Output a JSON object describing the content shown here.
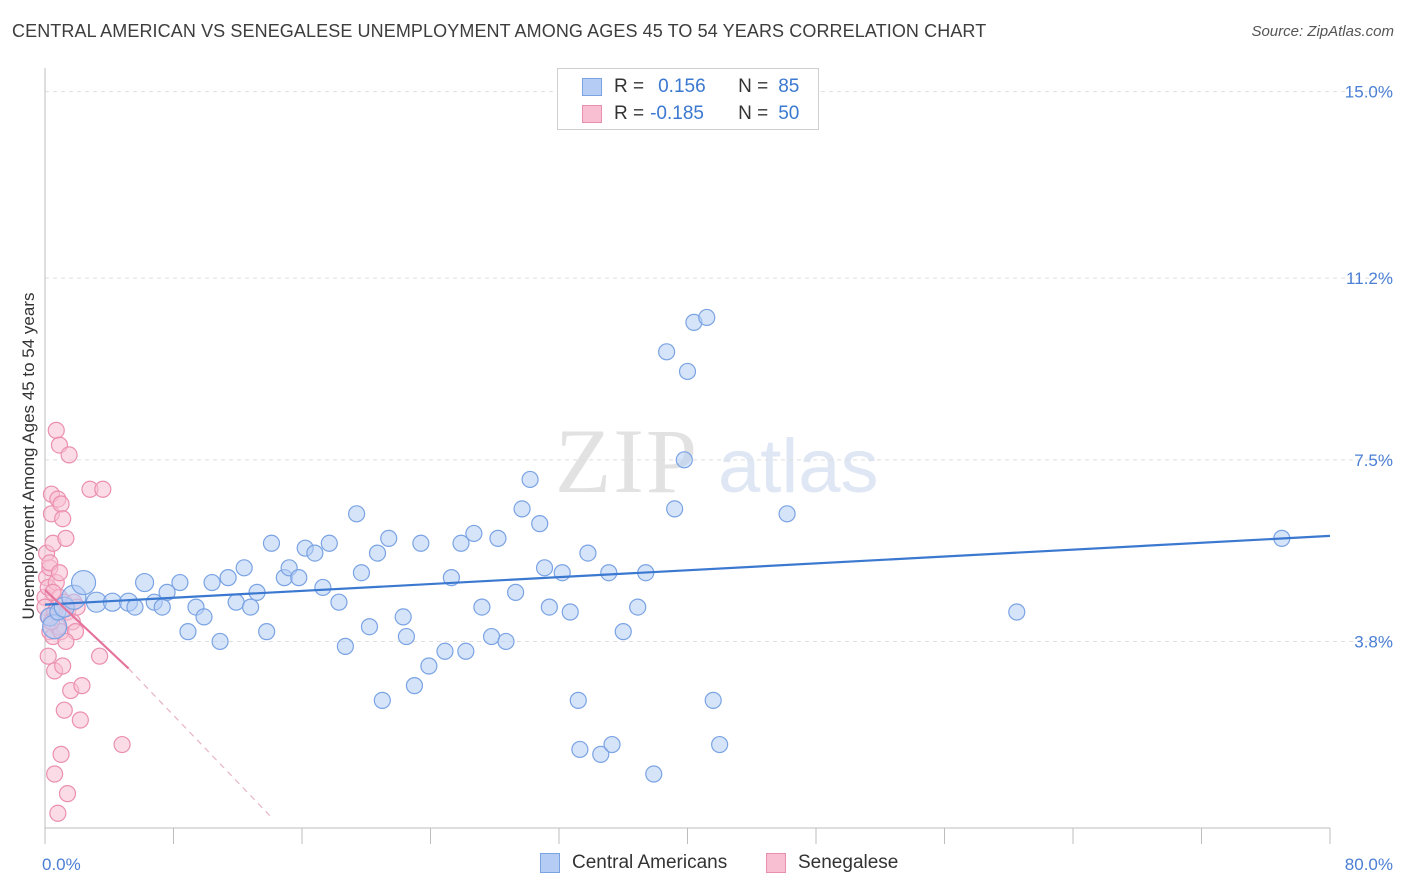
{
  "title": "CENTRAL AMERICAN VS SENEGALESE UNEMPLOYMENT AMONG AGES 45 TO 54 YEARS CORRELATION CHART",
  "source": "Source: ZipAtlas.com",
  "watermark": {
    "zip": "ZIP",
    "atlas": "atlas"
  },
  "legend": {
    "r_label": "R =",
    "n_label": "N =",
    "rows": [
      {
        "r": "0.156",
        "n": "85",
        "fill": "#b5cdf5",
        "stroke": "#7aa3e3"
      },
      {
        "r": "-0.185",
        "n": "50",
        "fill": "#f8bfd2",
        "stroke": "#eb8fb0"
      }
    ]
  },
  "bottom_legend": [
    "Central Americans",
    "Senegalese"
  ],
  "chart_data": {
    "type": "scatter",
    "title": "CENTRAL AMERICAN VS SENEGALESE UNEMPLOYMENT AMONG AGES 45 TO 54 YEARS CORRELATION CHART",
    "xlabel": "",
    "ylabel": "Unemployment Among Ages 45 to 54 years",
    "xlim": [
      0,
      80
    ],
    "ylim": [
      0,
      15.4
    ],
    "x_tick_labels": [
      "0.0%",
      "80.0%"
    ],
    "y_ticks": [
      3.8,
      7.5,
      11.2,
      15.0
    ],
    "y_tick_labels": [
      "3.8%",
      "7.5%",
      "11.2%",
      "15.0%"
    ],
    "grid": true,
    "series": [
      {
        "name": "Central Americans",
        "color": "#7aa3e3",
        "fill": "#b5cdf5",
        "trend": {
          "x": [
            0,
            80
          ],
          "y": [
            4.55,
            5.95
          ],
          "color": "#3b78d0"
        },
        "points": [
          [
            0.3,
            4.3,
            9
          ],
          [
            0.6,
            4.1,
            12
          ],
          [
            0.8,
            4.4,
            8
          ],
          [
            1.2,
            4.5,
            10
          ],
          [
            1.8,
            4.7,
            12
          ],
          [
            2.4,
            5.0,
            12
          ],
          [
            3.2,
            4.6,
            10
          ],
          [
            4.2,
            4.6,
            9
          ],
          [
            5.2,
            4.6,
            9
          ],
          [
            5.6,
            4.5,
            8
          ],
          [
            6.2,
            5.0,
            9
          ],
          [
            6.8,
            4.6,
            8
          ],
          [
            7.3,
            4.5,
            8
          ],
          [
            7.6,
            4.8,
            8
          ],
          [
            8.4,
            5.0,
            8
          ],
          [
            8.9,
            4.0,
            8
          ],
          [
            9.4,
            4.5,
            8
          ],
          [
            9.9,
            4.3,
            8
          ],
          [
            10.4,
            5.0,
            8
          ],
          [
            10.9,
            3.8,
            8
          ],
          [
            11.4,
            5.1,
            8
          ],
          [
            11.9,
            4.6,
            8
          ],
          [
            12.4,
            5.3,
            8
          ],
          [
            12.8,
            4.5,
            8
          ],
          [
            13.2,
            4.8,
            8
          ],
          [
            13.8,
            4.0,
            8
          ],
          [
            14.1,
            5.8,
            8
          ],
          [
            14.9,
            5.1,
            8
          ],
          [
            15.2,
            5.3,
            8
          ],
          [
            15.8,
            5.1,
            8
          ],
          [
            16.2,
            5.7,
            8
          ],
          [
            16.8,
            5.6,
            8
          ],
          [
            17.3,
            4.9,
            8
          ],
          [
            17.7,
            5.8,
            8
          ],
          [
            18.3,
            4.6,
            8
          ],
          [
            18.7,
            3.7,
            8
          ],
          [
            19.4,
            6.4,
            8
          ],
          [
            19.7,
            5.2,
            8
          ],
          [
            20.2,
            4.1,
            8
          ],
          [
            20.7,
            5.6,
            8
          ],
          [
            21.0,
            2.6,
            8
          ],
          [
            21.4,
            5.9,
            8
          ],
          [
            22.3,
            4.3,
            8
          ],
          [
            22.5,
            3.9,
            8
          ],
          [
            23.0,
            2.9,
            8
          ],
          [
            23.4,
            5.8,
            8
          ],
          [
            23.9,
            3.3,
            8
          ],
          [
            24.9,
            3.6,
            8
          ],
          [
            25.3,
            5.1,
            8
          ],
          [
            25.9,
            5.8,
            8
          ],
          [
            26.2,
            3.6,
            8
          ],
          [
            26.7,
            6.0,
            8
          ],
          [
            27.2,
            4.5,
            8
          ],
          [
            27.8,
            3.9,
            8
          ],
          [
            28.2,
            5.9,
            8
          ],
          [
            28.7,
            3.8,
            8
          ],
          [
            29.3,
            4.8,
            8
          ],
          [
            29.7,
            6.5,
            8
          ],
          [
            30.2,
            7.1,
            8
          ],
          [
            30.8,
            6.2,
            8
          ],
          [
            31.1,
            5.3,
            8
          ],
          [
            31.4,
            4.5,
            8
          ],
          [
            32.2,
            5.2,
            8
          ],
          [
            32.7,
            4.4,
            8
          ],
          [
            33.2,
            2.6,
            8
          ],
          [
            33.3,
            1.6,
            8
          ],
          [
            33.8,
            5.6,
            8
          ],
          [
            34.6,
            1.5,
            8
          ],
          [
            35.1,
            5.2,
            8
          ],
          [
            35.3,
            1.7,
            8
          ],
          [
            36.0,
            4.0,
            8
          ],
          [
            36.9,
            4.5,
            8
          ],
          [
            37.4,
            5.2,
            8
          ],
          [
            37.9,
            1.1,
            8
          ],
          [
            38.7,
            9.7,
            8
          ],
          [
            39.2,
            6.5,
            8
          ],
          [
            39.8,
            7.5,
            8
          ],
          [
            40.0,
            9.3,
            8
          ],
          [
            40.4,
            10.3,
            8
          ],
          [
            41.2,
            10.4,
            8
          ],
          [
            41.6,
            2.6,
            8
          ],
          [
            42.0,
            1.7,
            8
          ],
          [
            46.2,
            6.4,
            8
          ],
          [
            60.5,
            4.4,
            8
          ],
          [
            77.0,
            5.9,
            8
          ]
        ]
      },
      {
        "name": "Senegalese",
        "color": "#eb8fb0",
        "fill": "#f8bfd2",
        "trend": {
          "x": [
            0,
            5.2
          ],
          "y": [
            4.85,
            3.25
          ],
          "color": "#e4749d",
          "extended_to": [
            14.0,
            0.25
          ]
        },
        "points": [
          [
            0.0,
            4.7,
            8
          ],
          [
            0.0,
            4.5,
            8
          ],
          [
            0.1,
            5.1,
            8
          ],
          [
            0.1,
            5.6,
            8
          ],
          [
            0.2,
            4.9,
            8
          ],
          [
            0.2,
            4.3,
            8
          ],
          [
            0.3,
            5.3,
            8
          ],
          [
            0.3,
            4.0,
            8
          ],
          [
            0.4,
            6.8,
            8
          ],
          [
            0.4,
            6.4,
            8
          ],
          [
            0.5,
            5.8,
            8
          ],
          [
            0.5,
            3.9,
            8
          ],
          [
            0.6,
            4.4,
            8
          ],
          [
            0.6,
            3.2,
            8
          ],
          [
            0.7,
            8.1,
            8
          ],
          [
            0.7,
            5.0,
            8
          ],
          [
            0.8,
            6.7,
            8
          ],
          [
            0.8,
            4.1,
            8
          ],
          [
            0.9,
            7.8,
            8
          ],
          [
            0.9,
            4.7,
            8
          ],
          [
            1.0,
            6.6,
            8
          ],
          [
            1.0,
            4.0,
            8
          ],
          [
            1.1,
            6.3,
            8
          ],
          [
            1.1,
            3.3,
            8
          ],
          [
            1.2,
            4.6,
            8
          ],
          [
            1.2,
            2.4,
            8
          ],
          [
            1.3,
            5.9,
            8
          ],
          [
            1.4,
            4.4,
            8
          ],
          [
            1.5,
            7.6,
            8
          ],
          [
            1.6,
            2.8,
            8
          ],
          [
            1.7,
            4.2,
            8
          ],
          [
            1.8,
            4.6,
            8
          ],
          [
            1.9,
            4.0,
            8
          ],
          [
            2.0,
            4.5,
            8
          ],
          [
            2.2,
            2.2,
            8
          ],
          [
            2.3,
            2.9,
            8
          ],
          [
            2.8,
            6.9,
            8
          ],
          [
            3.4,
            3.5,
            8
          ],
          [
            3.6,
            6.9,
            8
          ],
          [
            4.8,
            1.7,
            8
          ],
          [
            0.2,
            3.5,
            8
          ],
          [
            0.3,
            5.4,
            8
          ],
          [
            0.5,
            4.8,
            8
          ],
          [
            0.6,
            1.1,
            8
          ],
          [
            0.8,
            0.3,
            8
          ],
          [
            1.0,
            1.5,
            8
          ],
          [
            1.4,
            0.7,
            8
          ],
          [
            0.4,
            4.2,
            8
          ],
          [
            0.9,
            5.2,
            8
          ],
          [
            1.3,
            3.8,
            8
          ]
        ]
      }
    ]
  }
}
